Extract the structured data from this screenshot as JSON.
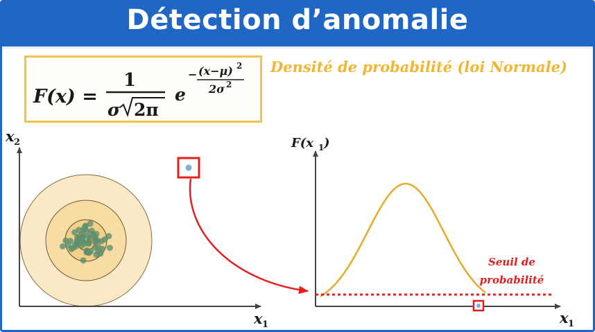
{
  "header": {
    "title": "Détection d’anomalie"
  },
  "formula": {
    "lhs": "F(x) =",
    "numerator": "1",
    "denominator_sigma": "σ",
    "denominator_root": "2π",
    "base": "e",
    "exp_numerator": "(x−μ)",
    "exp_numerator_power": "2",
    "exp_denominator": "2σ",
    "exp_denominator_power": "2",
    "exp_sign": "−"
  },
  "subtitle": "Densité de probabilité (loi Normale)",
  "left_plot": {
    "y_label": "x",
    "y_label_sub": "2",
    "x_label": "x",
    "x_label_sub": "1"
  },
  "right_plot": {
    "y_label": "F(x",
    "y_label_sub": "1",
    "y_label_close": ")",
    "x_label": "x",
    "x_label_sub": "1",
    "threshold_label_line1": "Seuil de",
    "threshold_label_line2": "probabilité"
  },
  "colors": {
    "banner": "#1f66c5",
    "formula_border": "#f2c24a",
    "subtitle": "#f1b632",
    "curve": "#e6a92b",
    "threshold": "#e0201e",
    "arrow": "#e0201e",
    "cluster_point": "#5f8f6e",
    "anomaly_point": "#7fb1d8"
  }
}
